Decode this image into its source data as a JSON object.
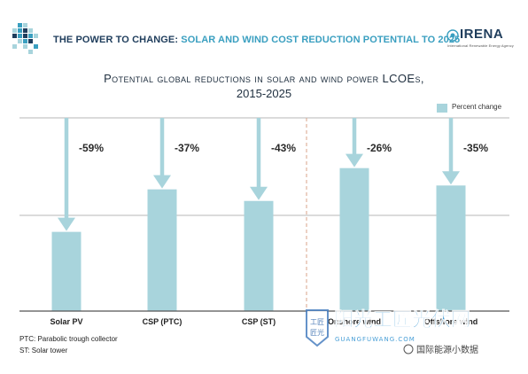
{
  "banner": {
    "title_highlight": "THE POWER TO CHANGE:",
    "title_rest": "SOLAR AND WIND COST REDUCTION POTENTIAL TO 2025"
  },
  "logo": {
    "name": "IRENA",
    "subtitle": "International Renewable Energy Agency"
  },
  "chart_data": {
    "type": "bar",
    "title": "Potential global reductions in solar and wind power LCOEs,",
    "subtitle": "2015-2025",
    "categories": [
      "Solar PV",
      "CSP (PTC)",
      "CSP (ST)",
      "Onshore wind",
      "Offshore wind"
    ],
    "series": [
      {
        "name": "Percent change",
        "values": [
          -59,
          -37,
          -43,
          -26,
          -35
        ]
      }
    ],
    "value_labels": [
      "-59%",
      "-37%",
      "-43%",
      "-26%",
      "-35%"
    ],
    "bar_color": "#a8d4dc",
    "arrow_color": "#a8d4dc",
    "legend": "top-right",
    "grid": true
  },
  "footnotes": {
    "ptc": "PTC: Parabolic trough collector",
    "st": "ST: Solar tower"
  },
  "watermark": {
    "main": "阳光工匠光伏网",
    "sub": "国际能源小数据",
    "badge": "工匠",
    "badge2": "匠光",
    "url": "GUANGFUWANG.COM"
  }
}
